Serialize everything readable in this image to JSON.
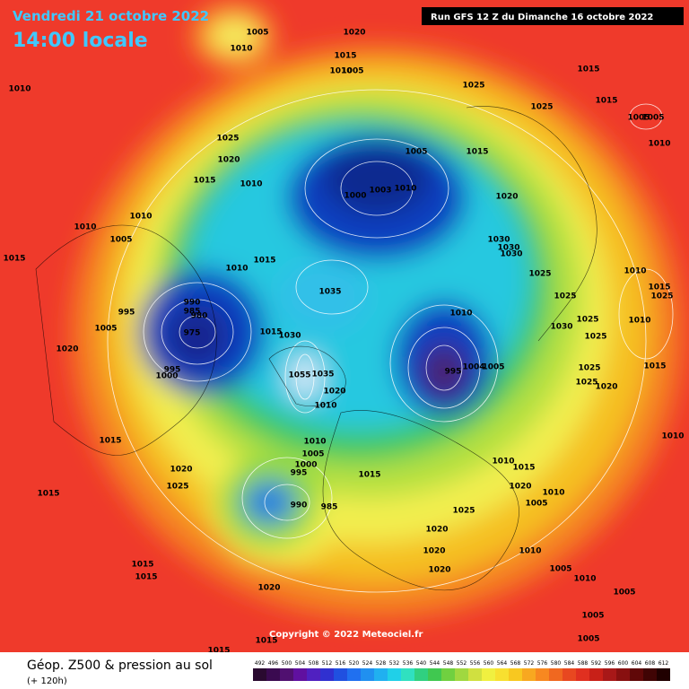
{
  "header": {
    "date": "Vendredi 21 octobre 2022",
    "time": "14:00 locale",
    "run": "Run GFS 12 Z du Dimanche 16 octobre 2022"
  },
  "copyright": "Copyright © 2022 Meteociel.fr",
  "footer": {
    "title": "Géop. Z500 & pression au sol",
    "lead": "(+ 120h)"
  },
  "colorbar": {
    "ticks": [
      "492",
      "496",
      "500",
      "504",
      "508",
      "512",
      "516",
      "520",
      "524",
      "528",
      "532",
      "536",
      "540",
      "544",
      "548",
      "552",
      "556",
      "560",
      "564",
      "568",
      "572",
      "576",
      "580",
      "584",
      "588",
      "592",
      "596",
      "600",
      "604",
      "608",
      "612"
    ]
  },
  "isobar_labels": [
    "1005",
    "1010",
    "1020",
    "1015",
    "1010",
    "1005",
    "1010",
    "1025",
    "1015",
    "1015",
    "1025",
    "1005",
    "1005",
    "1010",
    "1025",
    "1020",
    "1005",
    "1015",
    "1015",
    "1010",
    "1000",
    "1003",
    "1010",
    "1020",
    "1010",
    "1010",
    "1005",
    "1030",
    "1030",
    "1030",
    "1015",
    "1010",
    "1015",
    "1025",
    "1010",
    "1015",
    "1025",
    "1035",
    "1025",
    "990",
    "985",
    "995",
    "980",
    "1010",
    "1025",
    "1010",
    "1030",
    "975",
    "1005",
    "1015",
    "1030",
    "1025",
    "1020",
    "995",
    "1004",
    "1005",
    "995",
    "1000",
    "1055",
    "1035",
    "1025",
    "1015",
    "1025",
    "1020",
    "1020",
    "1010",
    "1010",
    "1015",
    "1010",
    "1005",
    "1000",
    "995",
    "1015",
    "1010",
    "1015",
    "1020",
    "1025",
    "1020",
    "1010",
    "1005",
    "1015",
    "990",
    "985",
    "1025",
    "1020",
    "1010",
    "1020",
    "1015",
    "1015",
    "1020",
    "1005",
    "1010",
    "1005",
    "1020",
    "1005",
    "1005",
    "1015",
    "1015"
  ]
}
